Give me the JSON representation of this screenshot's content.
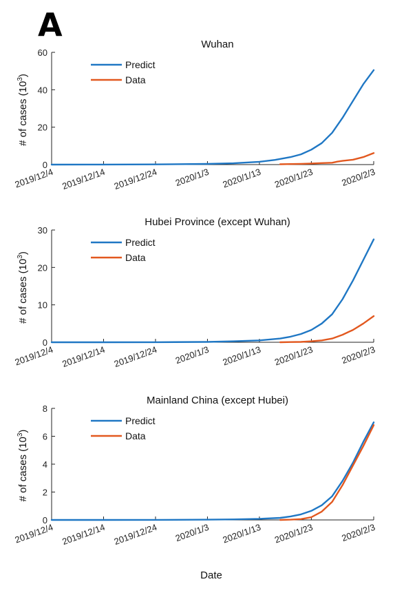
{
  "panel_label": "A",
  "colors": {
    "predict": "#1f77c4",
    "data": "#e2581f"
  },
  "x_label": "Date",
  "chart_data": [
    {
      "type": "line",
      "title": "Wuhan",
      "ylabel_prefix": "# of cases (10",
      "ylabel_exp": "3",
      "ylabel_suffix": ")",
      "xlabel": "Date",
      "ylim": [
        0,
        60
      ],
      "yticks": [
        "0",
        "20",
        "40",
        "60"
      ],
      "xticks": [
        "2019/12/4",
        "2019/12/14",
        "2019/12/24",
        "2020/1/3",
        "2020/1/13",
        "2020/1/23",
        "2020/2/3"
      ],
      "legend": "top-left",
      "series": [
        {
          "name": "Predict",
          "x": [
            0,
            10,
            20,
            30,
            35,
            40,
            43,
            46,
            48,
            50,
            52,
            54,
            56,
            58,
            60,
            62
          ],
          "y": [
            0,
            0.02,
            0.1,
            0.35,
            0.7,
            1.5,
            2.5,
            4,
            5.5,
            8,
            11.5,
            17,
            25,
            34,
            43,
            50.5
          ]
        },
        {
          "name": "Data",
          "x": [
            44,
            46,
            48,
            50,
            52,
            54,
            55,
            56,
            58,
            60,
            62
          ],
          "y": [
            0.2,
            0.3,
            0.4,
            0.6,
            0.8,
            1.0,
            1.6,
            2.0,
            2.6,
            4.0,
            6.2
          ]
        }
      ]
    },
    {
      "type": "line",
      "title": "Hubei Province (except Wuhan)",
      "ylabel_prefix": "# of cases (10",
      "ylabel_exp": "3",
      "ylabel_suffix": ")",
      "xlabel": "Date",
      "ylim": [
        0,
        30
      ],
      "yticks": [
        "0",
        "10",
        "20",
        "30"
      ],
      "xticks": [
        "2019/12/4",
        "2019/12/14",
        "2019/12/24",
        "2020/1/3",
        "2020/1/13",
        "2020/1/23",
        "2020/2/3"
      ],
      "legend": "top-left",
      "series": [
        {
          "name": "Predict",
          "x": [
            0,
            10,
            20,
            30,
            35,
            40,
            44,
            46,
            48,
            50,
            52,
            54,
            56,
            58,
            60,
            62
          ],
          "y": [
            0,
            0,
            0.02,
            0.1,
            0.25,
            0.5,
            1.0,
            1.5,
            2.2,
            3.3,
            5,
            7.5,
            11.5,
            16.5,
            22,
            27.5
          ]
        },
        {
          "name": "Data",
          "x": [
            44,
            46,
            48,
            50,
            52,
            54,
            56,
            58,
            60,
            62
          ],
          "y": [
            0,
            0.05,
            0.1,
            0.25,
            0.5,
            1.0,
            2.0,
            3.3,
            5.0,
            7.0
          ]
        }
      ]
    },
    {
      "type": "line",
      "title": "Mainland China (except Hubei)",
      "ylabel_prefix": "# of cases (10",
      "ylabel_exp": "3",
      "ylabel_suffix": ")",
      "xlabel": "Date",
      "ylim": [
        0,
        8
      ],
      "yticks": [
        "0",
        "2",
        "4",
        "6",
        "8"
      ],
      "xticks": [
        "2019/12/4",
        "2019/12/14",
        "2019/12/24",
        "2020/1/3",
        "2020/1/13",
        "2020/1/23",
        "2020/2/3"
      ],
      "legend": "top-left",
      "series": [
        {
          "name": "Predict",
          "x": [
            0,
            10,
            20,
            30,
            35,
            40,
            44,
            46,
            48,
            50,
            52,
            54,
            56,
            58,
            60,
            62
          ],
          "y": [
            0,
            0,
            0.005,
            0.02,
            0.04,
            0.08,
            0.15,
            0.25,
            0.4,
            0.65,
            1.05,
            1.7,
            2.8,
            4.1,
            5.6,
            7.0
          ]
        },
        {
          "name": "Data",
          "x": [
            44,
            46,
            48,
            50,
            52,
            54,
            56,
            58,
            60,
            62
          ],
          "y": [
            0,
            0.02,
            0.06,
            0.2,
            0.6,
            1.3,
            2.5,
            3.9,
            5.3,
            6.8
          ]
        }
      ]
    }
  ]
}
